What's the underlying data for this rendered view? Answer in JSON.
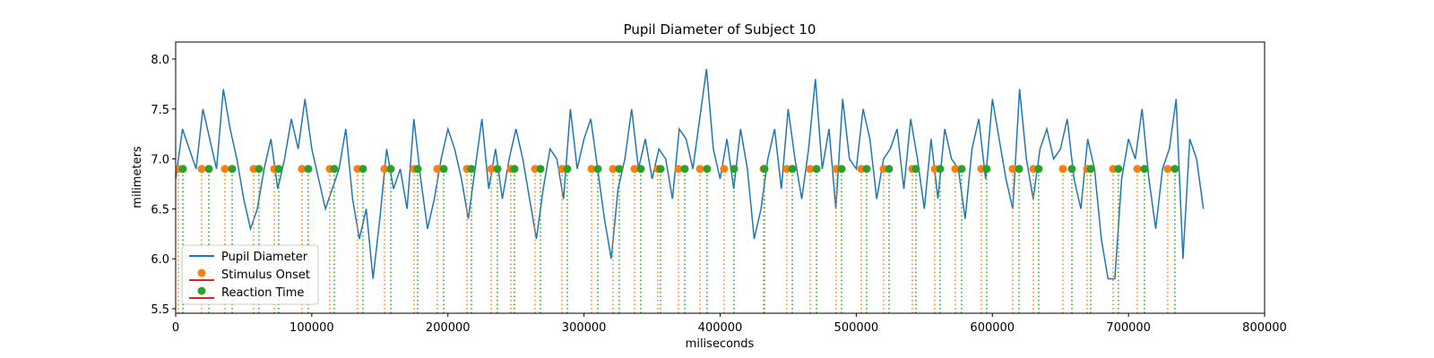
{
  "chart_data": {
    "type": "line",
    "title": "Pupil Diameter of Subject 10",
    "x_label": "miliseconds",
    "y_label": "milimeters",
    "xlim": [
      0,
      800000
    ],
    "xticks": [
      0,
      100000,
      200000,
      300000,
      400000,
      500000,
      600000,
      700000,
      800000
    ],
    "ylim": [
      5.455,
      8.17
    ],
    "yticks": [
      5.5,
      {
        "value": 6,
        "label": "6.0"
      },
      6.5,
      {
        "value": 7,
        "label": "7.0"
      },
      7.5,
      {
        "value": 8,
        "label": "8.0"
      }
    ],
    "legend": "lower left",
    "baseline_color": "#d62728",
    "series": [
      {
        "name": "Pupil Diameter",
        "type": "line",
        "color": "#1f77b4",
        "x": [
          0,
          5000,
          10000,
          15000,
          20000,
          25000,
          30000,
          35000,
          40000,
          45000,
          50000,
          55000,
          60000,
          65000,
          70000,
          75000,
          80000,
          85000,
          90000,
          95000,
          100000,
          105000,
          110000,
          115000,
          120000,
          125000,
          130000,
          135000,
          140000,
          145000,
          150000,
          155000,
          160000,
          165000,
          170000,
          175000,
          180000,
          185000,
          190000,
          195000,
          200000,
          205000,
          210000,
          215000,
          220000,
          225000,
          230000,
          235000,
          240000,
          245000,
          250000,
          255000,
          260000,
          265000,
          270000,
          275000,
          280000,
          285000,
          290000,
          295000,
          300000,
          305000,
          310000,
          315000,
          320000,
          325000,
          330000,
          335000,
          340000,
          345000,
          350000,
          355000,
          360000,
          365000,
          370000,
          375000,
          380000,
          385000,
          390000,
          395000,
          400000,
          405000,
          410000,
          415000,
          420000,
          425000,
          430000,
          435000,
          440000,
          445000,
          450000,
          455000,
          460000,
          465000,
          470000,
          475000,
          480000,
          485000,
          490000,
          495000,
          500000,
          505000,
          510000,
          515000,
          520000,
          525000,
          530000,
          535000,
          540000,
          545000,
          550000,
          555000,
          560000,
          565000,
          570000,
          575000,
          580000,
          585000,
          590000,
          595000,
          600000,
          605000,
          610000,
          615000,
          620000,
          625000,
          630000,
          635000,
          640000,
          645000,
          650000,
          655000,
          660000,
          665000,
          670000,
          675000,
          680000,
          685000,
          690000,
          695000,
          700000,
          705000,
          710000,
          715000,
          720000,
          725000,
          730000,
          735000,
          740000,
          745000,
          750000,
          755000
        ],
        "values": [
          6.8,
          7.3,
          7.1,
          6.9,
          7.5,
          7.2,
          6.9,
          7.7,
          7.3,
          7.0,
          6.6,
          6.3,
          6.5,
          6.9,
          7.2,
          6.7,
          7.0,
          7.4,
          7.1,
          7.6,
          7.1,
          6.8,
          6.5,
          6.7,
          6.9,
          7.3,
          6.6,
          6.2,
          6.5,
          5.8,
          6.4,
          7.1,
          6.7,
          6.9,
          6.5,
          7.4,
          6.8,
          6.3,
          6.6,
          7.0,
          7.3,
          7.1,
          6.8,
          6.4,
          6.9,
          7.4,
          6.7,
          7.1,
          6.6,
          7.0,
          7.3,
          7.0,
          6.6,
          6.2,
          6.7,
          7.1,
          7.0,
          6.6,
          7.5,
          6.9,
          7.2,
          7.4,
          6.9,
          6.4,
          6.0,
          6.7,
          7.0,
          7.5,
          6.9,
          7.2,
          6.8,
          7.1,
          7.0,
          6.6,
          7.3,
          7.2,
          6.9,
          7.4,
          7.9,
          7.1,
          6.8,
          7.2,
          6.7,
          7.3,
          6.9,
          6.2,
          6.5,
          7.0,
          7.3,
          6.7,
          7.5,
          7.0,
          6.6,
          7.1,
          7.8,
          6.9,
          7.3,
          6.5,
          7.6,
          7.0,
          6.9,
          7.5,
          7.2,
          6.6,
          7.0,
          7.1,
          7.3,
          6.7,
          7.4,
          7.0,
          6.5,
          7.2,
          6.6,
          7.3,
          7.0,
          6.9,
          6.4,
          7.1,
          7.4,
          6.8,
          7.6,
          7.2,
          6.8,
          6.5,
          7.7,
          7.0,
          6.6,
          7.1,
          7.3,
          7.0,
          7.1,
          7.4,
          6.8,
          6.5,
          7.2,
          6.9,
          6.2,
          5.8,
          5.8,
          6.8,
          7.2,
          7.0,
          7.5,
          6.8,
          6.3,
          6.9,
          7.1,
          7.6,
          6.0,
          7.2,
          7.0,
          6.5
        ]
      },
      {
        "name": "Stimulus Onset",
        "type": "stem",
        "color": "#ff7f0e",
        "x": [
          2000,
          19100,
          36200,
          57300,
          72400,
          92800,
          113200,
          133600,
          153400,
          175100,
          192200,
          214000,
          231800,
          246200,
          264000,
          283800,
          305500,
          321300,
          337100,
          354200,
          369400,
          385200,
          402900,
          431900,
          449000,
          466100,
          485200,
          503700,
          520100,
          541200,
          557700,
          572800,
          591900,
          614900,
          630100,
          651800,
          669600,
          688700,
          706500,
          728800
        ],
        "values": [
          6.9,
          6.9,
          6.9,
          6.9,
          6.9,
          6.9,
          6.9,
          6.9,
          6.9,
          6.9,
          6.9,
          6.9,
          6.9,
          6.9,
          6.9,
          6.9,
          6.9,
          6.9,
          6.9,
          6.9,
          6.9,
          6.9,
          6.9,
          6.9,
          6.9,
          6.9,
          6.9,
          6.9,
          6.9,
          6.9,
          6.9,
          6.9,
          6.9,
          6.9,
          6.9,
          6.9,
          6.9,
          6.9,
          6.9,
          6.9
        ]
      },
      {
        "name": "Reaction Time",
        "type": "stem",
        "color": "#2ca02c",
        "x": [
          5300,
          24400,
          41500,
          61200,
          75700,
          97400,
          116500,
          137600,
          158000,
          177800,
          196900,
          217300,
          236400,
          248900,
          268000,
          287700,
          310100,
          325900,
          341700,
          356200,
          374000,
          390400,
          410200,
          432600,
          453000,
          470800,
          489200,
          507600,
          524100,
          543800,
          561600,
          577400,
          595800,
          619600,
          634000,
          658400,
          672200,
          692600,
          711700,
          734100
        ],
        "values": [
          6.9,
          6.9,
          6.9,
          6.9,
          6.9,
          6.9,
          6.9,
          6.9,
          6.9,
          6.9,
          6.9,
          6.9,
          6.9,
          6.9,
          6.9,
          6.9,
          6.9,
          6.9,
          6.9,
          6.9,
          6.9,
          6.9,
          6.9,
          6.9,
          6.9,
          6.9,
          6.9,
          6.9,
          6.9,
          6.9,
          6.9,
          6.9,
          6.9,
          6.9,
          6.9,
          6.9,
          6.9,
          6.9,
          6.9,
          6.9
        ]
      }
    ]
  }
}
